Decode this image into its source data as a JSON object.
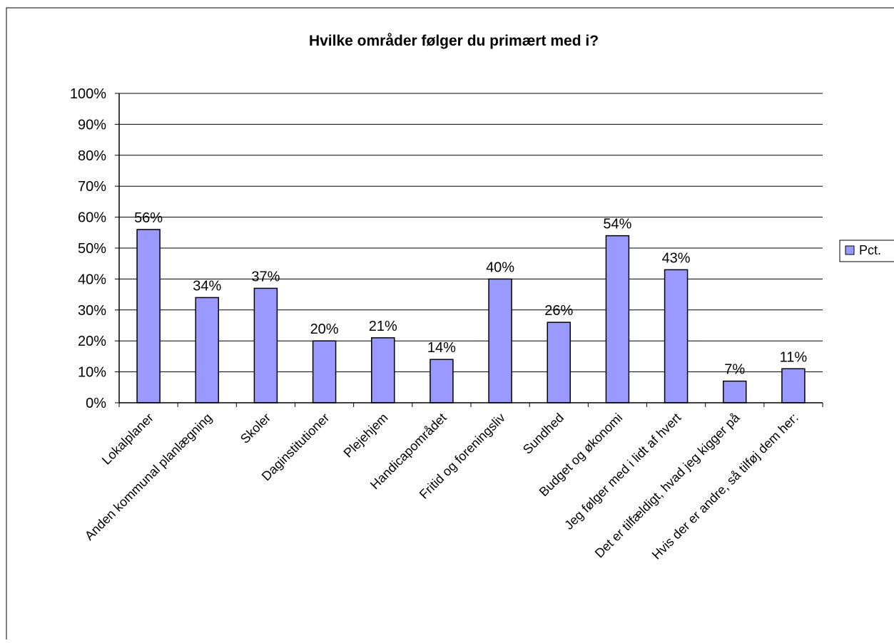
{
  "chart_data": {
    "type": "bar",
    "title": "Hvilke områder følger du primært med i?",
    "categories": [
      "Lokalplaner",
      "Anden kommunal planlægning",
      "Skoler",
      "Daginstitutioner",
      "Plejehjem",
      "Handicapområdet",
      "Fritid og foreningsliv",
      "Sundhed",
      "Budget og økonomi",
      "Jeg følger med i lidt af hvert",
      "Det er tilfældigt, hvad jeg kigger på",
      "Hvis der er andre, så tilføj dem her:"
    ],
    "series": [
      {
        "name": "Pct.",
        "values": [
          56,
          34,
          37,
          20,
          21,
          14,
          40,
          26,
          54,
          43,
          7,
          11
        ],
        "labels": [
          "56%",
          "34%",
          "37%",
          "20%",
          "21%",
          "14%",
          "40%",
          "26%",
          "54%",
          "43%",
          "7%",
          "11%"
        ]
      }
    ],
    "ylim": [
      0,
      100
    ],
    "yticks": [
      "0%",
      "10%",
      "20%",
      "30%",
      "40%",
      "50%",
      "60%",
      "70%",
      "80%",
      "90%",
      "100%"
    ],
    "grid": true,
    "legend": "right",
    "colors": {
      "bar": "#9999ff",
      "border": "#000000",
      "grid": "#000000"
    }
  }
}
